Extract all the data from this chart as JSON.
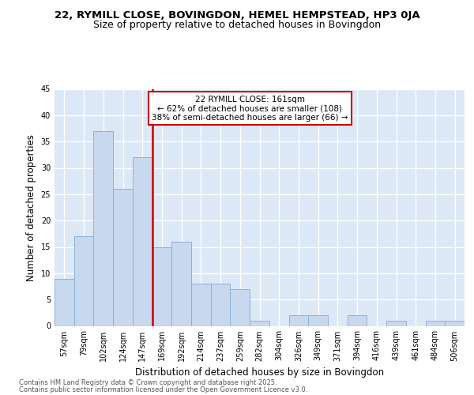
{
  "title1": "22, RYMILL CLOSE, BOVINGDON, HEMEL HEMPSTEAD, HP3 0JA",
  "title2": "Size of property relative to detached houses in Bovingdon",
  "xlabel": "Distribution of detached houses by size in Bovingdon",
  "ylabel": "Number of detached properties",
  "categories": [
    "57sqm",
    "79sqm",
    "102sqm",
    "124sqm",
    "147sqm",
    "169sqm",
    "192sqm",
    "214sqm",
    "237sqm",
    "259sqm",
    "282sqm",
    "304sqm",
    "326sqm",
    "349sqm",
    "371sqm",
    "394sqm",
    "416sqm",
    "439sqm",
    "461sqm",
    "484sqm",
    "506sqm"
  ],
  "values": [
    9,
    17,
    37,
    26,
    32,
    15,
    16,
    8,
    8,
    7,
    1,
    0,
    2,
    2,
    0,
    2,
    0,
    1,
    0,
    1,
    1
  ],
  "bar_color": "#c8d8ee",
  "bar_edge_color": "#8ab4d8",
  "vline_color": "#cc0000",
  "annotation_line1": "22 RYMILL CLOSE: 161sqm",
  "annotation_line2": "← 62% of detached houses are smaller (108)",
  "annotation_line3": "38% of semi-detached houses are larger (66) →",
  "annotation_box_color": "#cc0000",
  "ylim": [
    0,
    45
  ],
  "yticks": [
    0,
    5,
    10,
    15,
    20,
    25,
    30,
    35,
    40,
    45
  ],
  "background_color": "#dce8f5",
  "footer1": "Contains HM Land Registry data © Crown copyright and database right 2025.",
  "footer2": "Contains public sector information licensed under the Open Government Licence v3.0.",
  "title_fontsize": 9.5,
  "subtitle_fontsize": 9,
  "tick_fontsize": 7,
  "ylabel_fontsize": 8.5,
  "xlabel_fontsize": 8.5,
  "annotation_fontsize": 7.5
}
